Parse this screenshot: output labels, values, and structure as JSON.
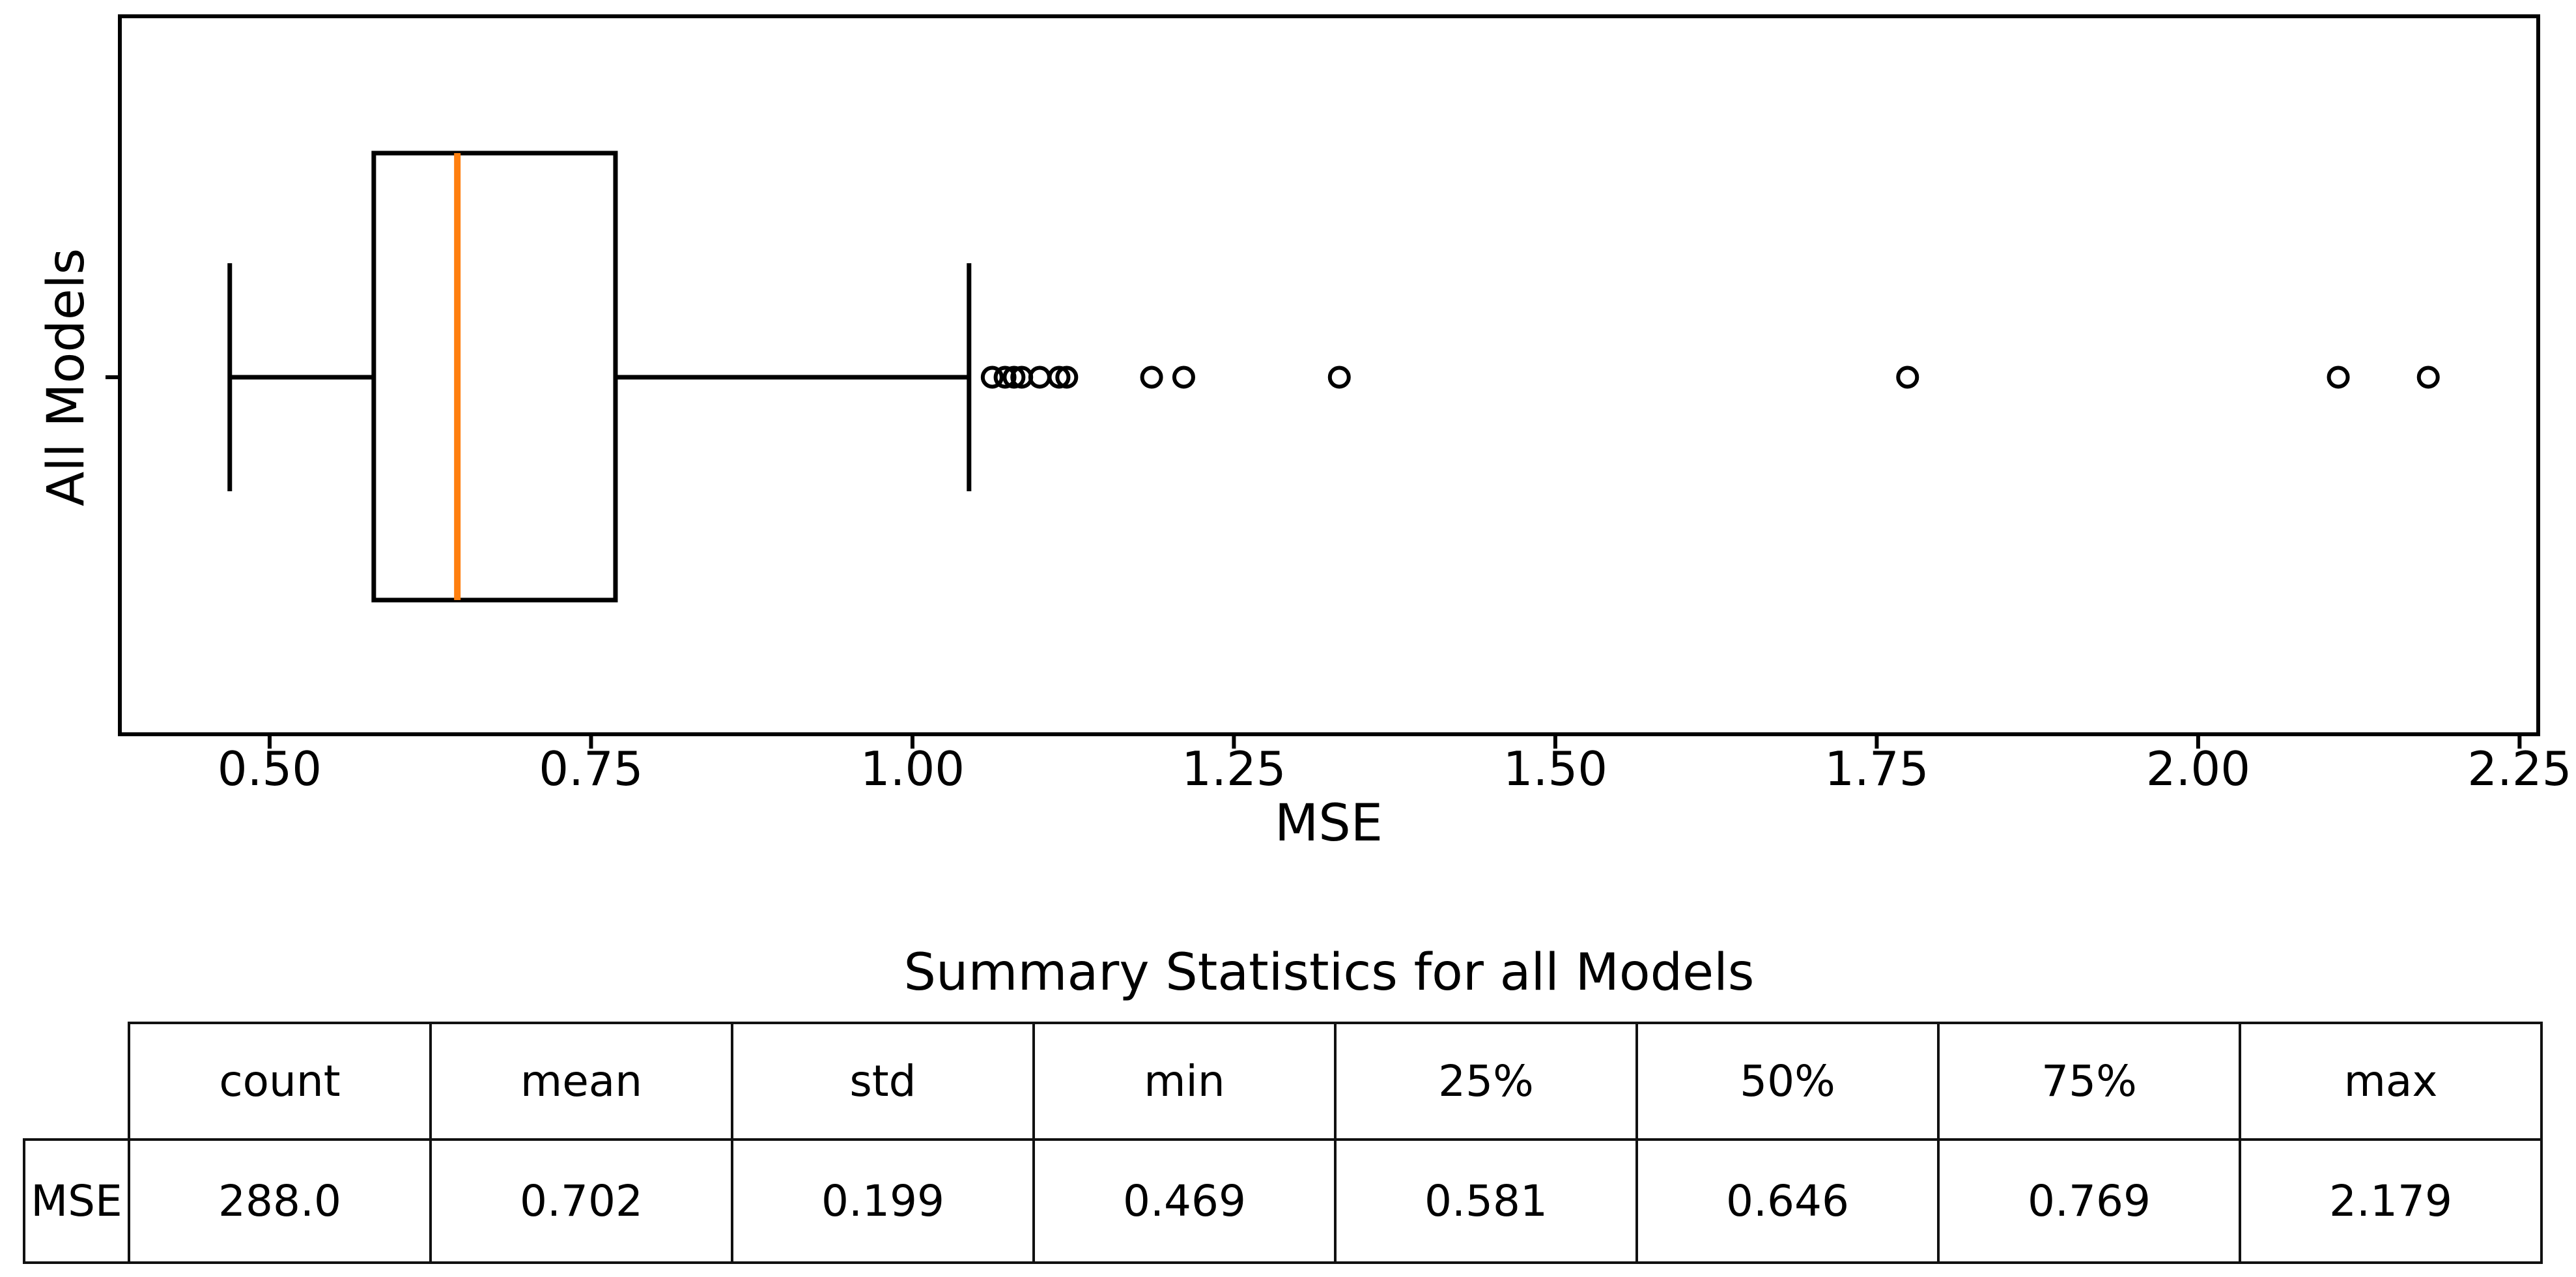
{
  "chart_data": {
    "type": "boxplot",
    "orientation": "horizontal",
    "xlabel": "MSE",
    "ylabel": "All Models",
    "category": "All Models",
    "xlim": [
      0.3835,
      2.2645
    ],
    "grid": false,
    "xticks": [
      {
        "value": 0.5,
        "label": "0.50"
      },
      {
        "value": 0.75,
        "label": "0.75"
      },
      {
        "value": 1.0,
        "label": "1.00"
      },
      {
        "value": 1.25,
        "label": "1.25"
      },
      {
        "value": 1.5,
        "label": "1.50"
      },
      {
        "value": 1.75,
        "label": "1.75"
      },
      {
        "value": 2.0,
        "label": "2.00"
      },
      {
        "value": 2.25,
        "label": "2.25"
      }
    ],
    "box": {
      "whisker_low": 0.469,
      "q1": 0.581,
      "median": 0.646,
      "q3": 0.769,
      "whisker_high": 1.044
    },
    "outliers": [
      1.062,
      1.072,
      1.079,
      1.085,
      1.099,
      1.114,
      1.12,
      1.186,
      1.211,
      1.332,
      1.774,
      2.109,
      2.179
    ],
    "colors": {
      "line": "#000000",
      "median": "#ff7f0e",
      "background": "#ffffff"
    }
  },
  "summary_table": {
    "title": "Summary Statistics for all Models",
    "columns": [
      "count",
      "mean",
      "std",
      "min",
      "25%",
      "50%",
      "75%",
      "max"
    ],
    "rows": [
      {
        "label": "MSE",
        "values": [
          "288.0",
          "0.702",
          "0.199",
          "0.469",
          "0.581",
          "0.646",
          "0.769",
          "2.179"
        ]
      }
    ]
  }
}
